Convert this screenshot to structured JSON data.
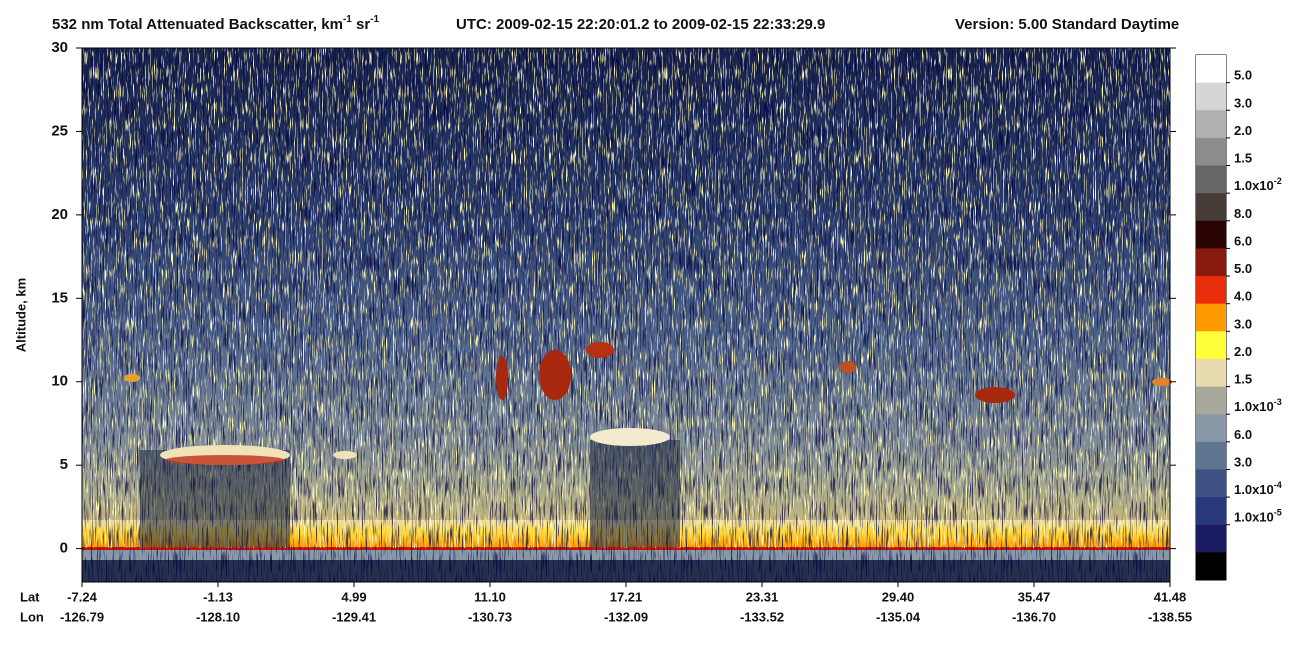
{
  "chart_data": {
    "type": "profile-image",
    "title_parts": [
      {
        "text": "532 nm Total Attenuated Backscatter, km",
        "sup": false
      },
      {
        "text": "-1",
        "sup": true
      },
      {
        "text": " sr",
        "sup": false
      },
      {
        "text": "-1",
        "sup": true
      }
    ],
    "time_range": "UTC:  2009-02-15 22:20:01.2  to  2009-02-15 22:33:29.9",
    "version": "Version: 5.00  Standard  Daytime",
    "ylabel": "Altitude, km",
    "ylim": [
      -2,
      30
    ],
    "yticks": [
      0,
      5,
      10,
      15,
      20,
      25,
      30
    ],
    "x_rows": [
      {
        "name": "Lat",
        "ticks": [
          "-7.24",
          "-1.13",
          "4.99",
          "11.10",
          "17.21",
          "23.31",
          "29.40",
          "35.47",
          "41.48"
        ]
      },
      {
        "name": "Lon",
        "ticks": [
          "-126.79",
          "-128.10",
          "-129.41",
          "-130.73",
          "-132.09",
          "-133.52",
          "-135.04",
          "-136.70",
          "-138.55"
        ]
      }
    ],
    "colorbar": {
      "colors": [
        "#ffffff",
        "#d6d6d6",
        "#b0b0b0",
        "#8c8c8c",
        "#666666",
        "#473c38",
        "#2a0303",
        "#8a1a10",
        "#e82e0a",
        "#ff9a00",
        "#ffff3a",
        "#e9dbb0",
        "#a8a99b",
        "#8898a6",
        "#5e7490",
        "#3e5283",
        "#283a7c",
        "#1b1b63",
        "#000000"
      ],
      "labels": [
        {
          "label": "5.0"
        },
        {
          "label": "3.0"
        },
        {
          "label": "2.0"
        },
        {
          "label": "1.5"
        },
        {
          "label": "1.0x10",
          "sup": "-2"
        },
        {
          "label": "8.0"
        },
        {
          "label": "6.0"
        },
        {
          "label": "5.0"
        },
        {
          "label": "4.0"
        },
        {
          "label": "3.0"
        },
        {
          "label": "2.0"
        },
        {
          "label": "1.5"
        },
        {
          "label": "1.0x10",
          "sup": "-3"
        },
        {
          "label": "6.0"
        },
        {
          "label": "3.0"
        },
        {
          "label": "1.0x10",
          "sup": "-4"
        },
        {
          "label": "1.0x10",
          "sup": "-5"
        }
      ]
    }
  }
}
